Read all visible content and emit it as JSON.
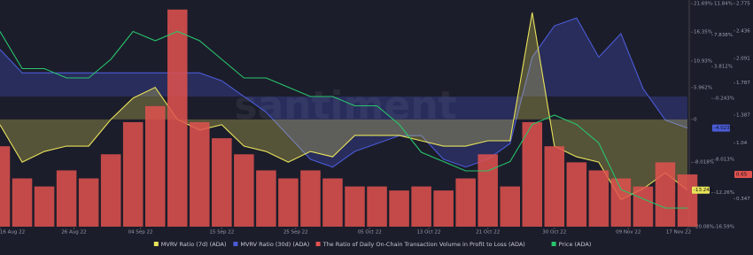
{
  "chart_data": {
    "type": "combo",
    "watermark": "santiment",
    "x": [
      "2022-08-16",
      "2022-08-19",
      "2022-08-22",
      "2022-08-25",
      "2022-08-28",
      "2022-08-31",
      "2022-09-03",
      "2022-09-06",
      "2022-09-09",
      "2022-09-12",
      "2022-09-15",
      "2022-09-18",
      "2022-09-21",
      "2022-09-24",
      "2022-09-27",
      "2022-09-30",
      "2022-10-03",
      "2022-10-06",
      "2022-10-09",
      "2022-10-12",
      "2022-10-15",
      "2022-10-18",
      "2022-10-21",
      "2022-10-24",
      "2022-10-27",
      "2022-10-30",
      "2022-11-02",
      "2022-11-05",
      "2022-11-08",
      "2022-11-11",
      "2022-11-14",
      "2022-11-17"
    ],
    "xlim": [
      "2022-08-16",
      "2022-11-17"
    ],
    "xticks": [
      {
        "value": "2022-08-16",
        "label": "16 Aug 22"
      },
      {
        "value": "2022-08-26",
        "label": "26 Aug 22"
      },
      {
        "value": "2022-09-04",
        "label": "04 Sep 22"
      },
      {
        "value": "2022-09-15",
        "label": "15 Sep 22"
      },
      {
        "value": "2022-09-25",
        "label": "25 Sep 22"
      },
      {
        "value": "2022-10-05",
        "label": "05 Oct 22"
      },
      {
        "value": "2022-10-13",
        "label": "13 Oct 22"
      },
      {
        "value": "2022-10-21",
        "label": "21 Oct 22"
      },
      {
        "value": "2022-10-30",
        "label": "30 Oct 22"
      },
      {
        "value": "2022-11-09",
        "label": "09 Nov 22"
      },
      {
        "value": "2022-11-17",
        "label": "17 Nov 22"
      }
    ],
    "ylim": [
      -20.08,
      21.69
    ],
    "yticks": [
      {
        "value": 21.69,
        "label": "21.69%"
      },
      {
        "value": 16.35,
        "label": "16.35%"
      },
      {
        "value": 10.93,
        "label": "10.93%"
      },
      {
        "value": 5.962,
        "label": "5.962%"
      },
      0,
      {
        "value": -8.018,
        "label": "-8.018%"
      },
      {
        "value": -20.08,
        "label": "-20.08%"
      }
    ],
    "y2lim": [
      -16.59,
      11.84
    ],
    "y2ticks": [
      {
        "value": 11.84,
        "label": "11.84%"
      },
      {
        "value": 7.838,
        "label": "7.838%"
      },
      {
        "value": 3.812,
        "label": "3.812%"
      },
      {
        "value": -0.243,
        "label": "-0.243%"
      },
      {
        "value": -8.013,
        "label": "-8.013%"
      },
      {
        "value": -12.26,
        "label": "-12.26%"
      },
      {
        "value": -16.59,
        "label": "-16.59%"
      }
    ],
    "y3lim": [
      0,
      2.775
    ],
    "y3ticks": [
      2.775,
      2.436,
      2.091,
      1.787,
      1.387,
      1.04,
      0.347
    ],
    "y4lim": [
      0.29,
      0.53
    ],
    "series": [
      {
        "name": "MVRV Ratio (30d) (ADA)",
        "type": "area",
        "axis": "y2",
        "color": "#4a5bd6",
        "values": [
          6,
          3,
          3,
          3,
          3,
          3,
          3,
          3,
          3,
          3,
          2,
          0,
          -2,
          -5,
          -8,
          -9,
          -7,
          -6,
          -5,
          -5,
          -8,
          -9,
          -8,
          -6,
          5,
          9,
          10,
          5,
          8,
          1,
          -3,
          -4.023
        ],
        "current_label": "-4.023%"
      },
      {
        "name": "MVRV Ratio (7d) (ADA)",
        "type": "area",
        "axis": "y",
        "color": "#e8e35a",
        "values": [
          -1,
          -8,
          -6,
          -5,
          -5,
          0,
          4,
          6,
          0,
          -2,
          -1,
          -5,
          -6,
          -8,
          -6,
          -7,
          -3,
          -3,
          -3,
          -4,
          -5,
          -5,
          -4,
          -4,
          20,
          -5,
          -7,
          -8,
          -15,
          -13,
          -10,
          -13.24
        ],
        "current_label": "-13.24%"
      },
      {
        "name": "The Ratio of Daily On-Chain Transaction Volume in Profit to Loss (ADA)",
        "type": "bar",
        "axis": "y3",
        "color": "#e0524f",
        "values": [
          1.0,
          0.6,
          0.5,
          0.7,
          0.6,
          0.9,
          1.3,
          1.5,
          2.7,
          1.3,
          1.1,
          0.9,
          0.7,
          0.6,
          0.7,
          0.6,
          0.5,
          0.5,
          0.45,
          0.5,
          0.45,
          0.6,
          0.9,
          0.5,
          1.3,
          1.0,
          0.8,
          0.7,
          0.6,
          0.5,
          0.8,
          0.65
        ],
        "current_label": "0.65"
      },
      {
        "name": "Price (ADA)",
        "type": "line",
        "axis": "y4",
        "color": "#27c56b",
        "values": [
          0.5,
          0.46,
          0.46,
          0.45,
          0.45,
          0.47,
          0.5,
          0.49,
          0.5,
          0.49,
          0.47,
          0.45,
          0.45,
          0.44,
          0.43,
          0.43,
          0.42,
          0.42,
          0.4,
          0.37,
          0.36,
          0.35,
          0.35,
          0.36,
          0.4,
          0.41,
          0.4,
          0.38,
          0.33,
          0.32,
          0.31,
          0.31
        ]
      }
    ]
  }
}
